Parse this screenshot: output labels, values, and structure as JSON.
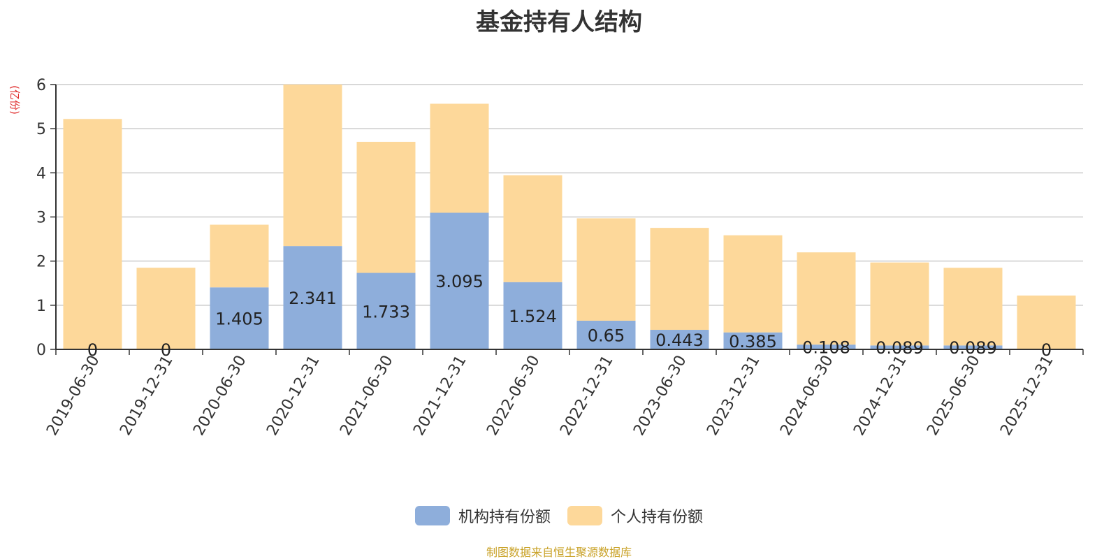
{
  "chart_data": {
    "type": "bar",
    "stacked": true,
    "title": "基金持有人结构",
    "ylabel": "(亿份)",
    "ylim": [
      0,
      6
    ],
    "yticks": [
      0,
      1,
      2,
      3,
      4,
      5,
      6
    ],
    "grid": true,
    "legend_position": "bottom-center",
    "categories": [
      "2019-06-30",
      "2019-12-31",
      "2020-06-30",
      "2020-12-31",
      "2021-06-30",
      "2021-12-31",
      "2022-06-30",
      "2022-12-31",
      "2023-06-30",
      "2023-12-31",
      "2024-06-30",
      "2024-12-31",
      "2025-06-30",
      "2025-12-31"
    ],
    "series": [
      {
        "name": "机构持有份额",
        "color": "#8eaedb",
        "values": [
          0,
          0,
          1.405,
          2.341,
          1.733,
          3.095,
          1.524,
          0.65,
          0.443,
          0.385,
          0.108,
          0.089,
          0.089,
          0
        ],
        "labels": [
          "0",
          "0",
          "1.405",
          "2.341",
          "1.733",
          "3.095",
          "1.524",
          "0.65",
          "0.443",
          "0.385",
          "0.108",
          "0.089",
          "0.089",
          "0"
        ]
      },
      {
        "name": "个人持有份额",
        "color": "#fdd89a",
        "values": [
          5.22,
          1.85,
          1.42,
          3.66,
          2.97,
          2.47,
          2.42,
          2.32,
          2.31,
          2.2,
          2.09,
          1.88,
          1.76,
          1.22
        ]
      }
    ]
  },
  "footer": {
    "source": "制图数据来自恒生聚源数据库"
  }
}
